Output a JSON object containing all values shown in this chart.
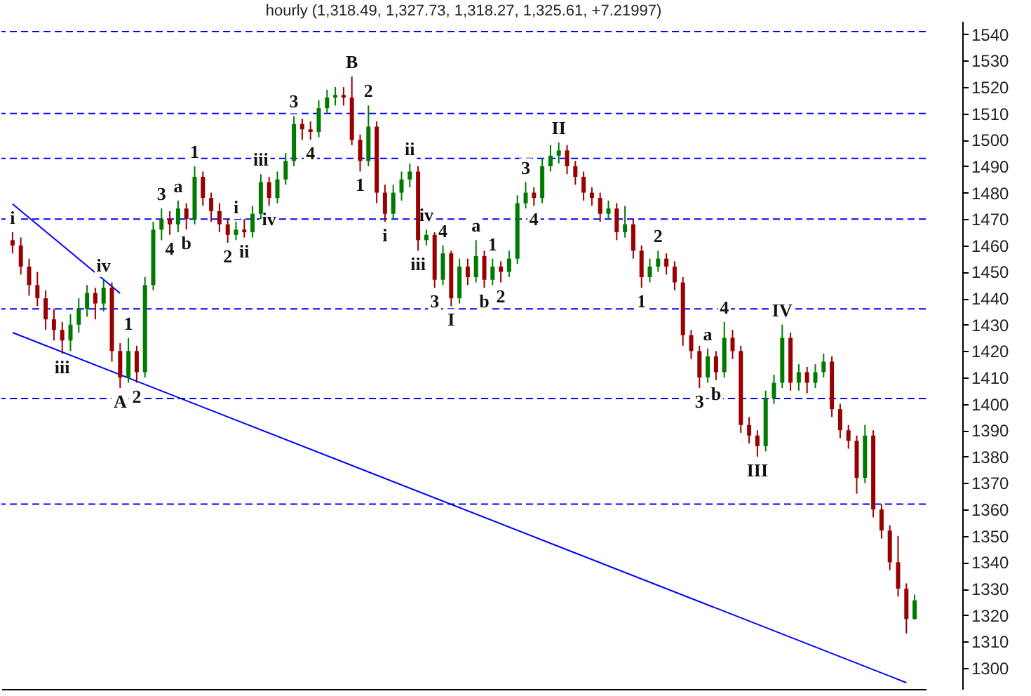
{
  "chart_data": {
    "type": "candlestick",
    "title": "hourly (1,318.49, 1,327.73, 1,318.27, 1,325.61, +7.21997)",
    "categories": [
      null,
      null,
      null,
      null,
      null,
      null,
      null,
      null,
      null,
      null,
      null,
      null,
      null,
      null,
      null,
      null,
      null,
      null,
      null,
      null,
      null,
      null,
      null,
      null,
      null,
      null,
      null,
      null,
      null,
      null,
      null,
      null,
      null,
      null,
      null,
      null,
      null,
      null,
      null,
      null,
      null,
      null,
      null,
      null,
      null,
      null,
      null,
      null,
      null,
      null,
      null,
      null,
      null,
      null,
      null,
      null,
      null,
      null,
      null,
      null,
      null,
      null,
      null,
      null,
      null,
      null,
      null,
      null,
      null,
      null,
      null,
      null,
      null,
      null,
      null,
      null,
      null,
      null,
      null,
      null,
      null,
      null,
      null,
      null,
      null,
      null,
      null,
      null,
      null,
      null,
      null,
      null,
      null,
      null,
      null,
      null,
      null,
      null,
      null,
      null,
      null,
      null,
      null,
      null,
      null,
      null,
      null,
      null,
      null,
      null
    ],
    "ohlc": [
      [
        1462,
        1465,
        1457,
        1460
      ],
      [
        1460,
        1463,
        1449,
        1452
      ],
      [
        1452,
        1455,
        1441,
        1445
      ],
      [
        1445,
        1450,
        1437,
        1440
      ],
      [
        1440,
        1443,
        1428,
        1432
      ],
      [
        1432,
        1436,
        1424,
        1428
      ],
      [
        1428,
        1431,
        1419,
        1424
      ],
      [
        1424,
        1434,
        1420,
        1430
      ],
      [
        1430,
        1440,
        1427,
        1436
      ],
      [
        1436,
        1445,
        1433,
        1442
      ],
      [
        1442,
        1444,
        1432,
        1438
      ],
      [
        1438,
        1447,
        1435,
        1444
      ],
      [
        1444,
        1446,
        1416,
        1420
      ],
      [
        1420,
        1423,
        1406,
        1410
      ],
      [
        1410,
        1425,
        1408,
        1420
      ],
      [
        1420,
        1422,
        1408,
        1412
      ],
      [
        1412,
        1448,
        1410,
        1445
      ],
      [
        1445,
        1469,
        1443,
        1466
      ],
      [
        1466,
        1474,
        1462,
        1470
      ],
      [
        1470,
        1473,
        1464,
        1468
      ],
      [
        1468,
        1477,
        1465,
        1474
      ],
      [
        1474,
        1476,
        1466,
        1470
      ],
      [
        1470,
        1490,
        1468,
        1486
      ],
      [
        1486,
        1488,
        1475,
        1478
      ],
      [
        1478,
        1480,
        1469,
        1473
      ],
      [
        1473,
        1476,
        1465,
        1468
      ],
      [
        1468,
        1470,
        1461,
        1464
      ],
      [
        1464,
        1469,
        1462,
        1466
      ],
      [
        1466,
        1470,
        1463,
        1465
      ],
      [
        1465,
        1475,
        1463,
        1472
      ],
      [
        1472,
        1487,
        1470,
        1484
      ],
      [
        1484,
        1486,
        1475,
        1478
      ],
      [
        1478,
        1488,
        1476,
        1485
      ],
      [
        1485,
        1495,
        1483,
        1492
      ],
      [
        1492,
        1509,
        1490,
        1506
      ],
      [
        1506,
        1508,
        1500,
        1504
      ],
      [
        1504,
        1507,
        1500,
        1503
      ],
      [
        1503,
        1515,
        1501,
        1512
      ],
      [
        1512,
        1519,
        1510,
        1516
      ],
      [
        1516,
        1520,
        1513,
        1517
      ],
      [
        1517,
        1520,
        1513,
        1516
      ],
      [
        1516,
        1524,
        1498,
        1500
      ],
      [
        1500,
        1502,
        1488,
        1492
      ],
      [
        1492,
        1513,
        1490,
        1505
      ],
      [
        1505,
        1507,
        1476,
        1480
      ],
      [
        1480,
        1483,
        1469,
        1472
      ],
      [
        1472,
        1483,
        1470,
        1480
      ],
      [
        1480,
        1488,
        1477,
        1485
      ],
      [
        1485,
        1491,
        1482,
        1488
      ],
      [
        1488,
        1490,
        1458,
        1462
      ],
      [
        1462,
        1466,
        1460,
        1464
      ],
      [
        1464,
        1465,
        1444,
        1447
      ],
      [
        1447,
        1460,
        1445,
        1457
      ],
      [
        1457,
        1458,
        1437,
        1440
      ],
      [
        1440,
        1455,
        1438,
        1452
      ],
      [
        1452,
        1455,
        1445,
        1448
      ],
      [
        1448,
        1462,
        1446,
        1456
      ],
      [
        1456,
        1458,
        1444,
        1447
      ],
      [
        1447,
        1455,
        1445,
        1452
      ],
      [
        1452,
        1454,
        1446,
        1450
      ],
      [
        1450,
        1458,
        1448,
        1455
      ],
      [
        1455,
        1479,
        1453,
        1476
      ],
      [
        1476,
        1484,
        1474,
        1480
      ],
      [
        1480,
        1482,
        1475,
        1478
      ],
      [
        1478,
        1493,
        1476,
        1490
      ],
      [
        1490,
        1498,
        1488,
        1494
      ],
      [
        1494,
        1499,
        1491,
        1496
      ],
      [
        1496,
        1498,
        1487,
        1490
      ],
      [
        1490,
        1492,
        1483,
        1486
      ],
      [
        1486,
        1488,
        1477,
        1480
      ],
      [
        1480,
        1482,
        1475,
        1478
      ],
      [
        1478,
        1480,
        1469,
        1472
      ],
      [
        1472,
        1477,
        1470,
        1474
      ],
      [
        1474,
        1476,
        1462,
        1465
      ],
      [
        1465,
        1475,
        1463,
        1468
      ],
      [
        1468,
        1470,
        1455,
        1458
      ],
      [
        1458,
        1460,
        1444,
        1448
      ],
      [
        1448,
        1455,
        1446,
        1452
      ],
      [
        1452,
        1458,
        1450,
        1455
      ],
      [
        1455,
        1457,
        1449,
        1452
      ],
      [
        1452,
        1454,
        1443,
        1446
      ],
      [
        1446,
        1448,
        1422,
        1426
      ],
      [
        1426,
        1428,
        1417,
        1420
      ],
      [
        1420,
        1422,
        1406,
        1410
      ],
      [
        1410,
        1421,
        1408,
        1418
      ],
      [
        1418,
        1420,
        1409,
        1412
      ],
      [
        1412,
        1431,
        1410,
        1425
      ],
      [
        1425,
        1428,
        1417,
        1420
      ],
      [
        1420,
        1422,
        1389,
        1392
      ],
      [
        1392,
        1395,
        1385,
        1388
      ],
      [
        1388,
        1390,
        1380,
        1384
      ],
      [
        1384,
        1405,
        1382,
        1402
      ],
      [
        1402,
        1411,
        1400,
        1408
      ],
      [
        1408,
        1430,
        1406,
        1425
      ],
      [
        1425,
        1427,
        1405,
        1408
      ],
      [
        1408,
        1415,
        1405,
        1412
      ],
      [
        1412,
        1414,
        1404,
        1408
      ],
      [
        1408,
        1415,
        1406,
        1412
      ],
      [
        1412,
        1419,
        1410,
        1416
      ],
      [
        1416,
        1418,
        1395,
        1398
      ],
      [
        1398,
        1400,
        1387,
        1390
      ],
      [
        1390,
        1392,
        1383,
        1386
      ],
      [
        1386,
        1388,
        1366,
        1372
      ],
      [
        1372,
        1392,
        1370,
        1388
      ],
      [
        1388,
        1390,
        1357,
        1360
      ],
      [
        1360,
        1362,
        1349,
        1352
      ],
      [
        1352,
        1354,
        1337,
        1340
      ],
      [
        1340,
        1350,
        1327,
        1330
      ],
      [
        1330,
        1332,
        1313,
        1318.49
      ],
      [
        1318.49,
        1327.73,
        1318.27,
        1325.61
      ]
    ],
    "colors": [
      "#990000",
      "#990000",
      "#990000",
      "#990000",
      "#990000",
      "#990000",
      "#990000",
      "#007a00",
      "#007a00",
      "#007a00",
      "#990000",
      "#007a00",
      "#990000",
      "#990000",
      "#007a00",
      "#990000",
      "#007a00",
      "#007a00",
      "#007a00",
      "#990000",
      "#007a00",
      "#990000",
      "#007a00",
      "#990000",
      "#990000",
      "#990000",
      "#990000",
      "#007a00",
      "#990000",
      "#007a00",
      "#007a00",
      "#990000",
      "#007a00",
      "#007a00",
      "#007a00",
      "#990000",
      "#990000",
      "#007a00",
      "#007a00",
      "#007a00",
      "#990000",
      "#990000",
      "#990000",
      "#007a00",
      "#990000",
      "#990000",
      "#007a00",
      "#007a00",
      "#007a00",
      "#990000",
      "#007a00",
      "#990000",
      "#007a00",
      "#990000",
      "#007a00",
      "#990000",
      "#007a00",
      "#990000",
      "#007a00",
      "#990000",
      "#007a00",
      "#007a00",
      "#007a00",
      "#990000",
      "#007a00",
      "#007a00",
      "#007a00",
      "#990000",
      "#990000",
      "#990000",
      "#990000",
      "#990000",
      "#007a00",
      "#990000",
      "#007a00",
      "#990000",
      "#990000",
      "#007a00",
      "#007a00",
      "#990000",
      "#990000",
      "#990000",
      "#990000",
      "#990000",
      "#007a00",
      "#990000",
      "#007a00",
      "#990000",
      "#990000",
      "#990000",
      "#990000",
      "#007a00",
      "#007a00",
      "#007a00",
      "#990000",
      "#007a00",
      "#990000",
      "#007a00",
      "#007a00",
      "#990000",
      "#990000",
      "#990000",
      "#990000",
      "#007a00",
      "#990000",
      "#990000",
      "#990000",
      "#990000",
      "#990000",
      "#007a00"
    ],
    "value_labels": [
      "i",
      null,
      null,
      null,
      null,
      null,
      "iii",
      null,
      null,
      null,
      null,
      "iv",
      null,
      "A",
      "1",
      "2",
      null,
      null,
      "3",
      "4",
      "a",
      "b",
      "1",
      null,
      null,
      null,
      "2",
      "i",
      "ii",
      null,
      "iii",
      "iv",
      null,
      null,
      "3",
      null,
      "4",
      null,
      null,
      null,
      null,
      "B",
      "1",
      "2",
      null,
      "i",
      null,
      null,
      "ii",
      "iii",
      "iv",
      "3",
      "4",
      "I",
      null,
      null,
      "a",
      "b",
      "1",
      "2",
      null,
      null,
      "3",
      "4",
      null,
      null,
      "II",
      null,
      null,
      null,
      null,
      null,
      null,
      null,
      null,
      null,
      "1",
      null,
      "2",
      null,
      null,
      null,
      null,
      "3",
      "a",
      "b",
      "4",
      null,
      null,
      null,
      "III",
      null,
      null,
      "IV",
      null,
      null,
      null,
      null,
      null,
      null,
      null,
      null,
      null,
      null,
      null,
      null,
      null,
      null,
      null,
      null
    ],
    "series": [
      {
        "type": "line",
        "color": "#0000ff",
        "values": [
          1475.7,
          null,
          null,
          null,
          null,
          null,
          null,
          null,
          null,
          null,
          null,
          null,
          null,
          1441.9,
          null,
          null,
          null,
          null,
          null,
          null,
          null,
          null,
          null,
          null,
          null,
          null,
          null,
          null,
          null,
          null,
          null,
          null,
          null,
          null,
          null,
          null,
          null,
          null,
          null,
          null,
          null,
          null,
          null,
          null,
          null,
          null,
          null,
          null,
          null,
          null,
          null,
          null,
          null,
          null,
          null,
          null,
          null,
          null,
          null,
          null,
          null,
          null,
          null,
          null,
          null,
          null,
          null,
          null,
          null,
          null,
          null,
          null,
          null,
          null,
          null,
          null,
          null,
          null,
          null,
          null,
          null,
          null,
          null,
          null,
          null,
          null,
          null,
          null,
          null,
          null,
          null,
          null,
          null,
          null,
          null,
          null,
          null,
          null,
          null,
          null,
          null,
          null,
          null,
          null,
          null,
          null,
          null,
          null,
          null,
          null
        ]
      },
      {
        "type": "line",
        "color": "#0000ff",
        "values": [
          1427,
          null,
          null,
          null,
          null,
          null,
          null,
          null,
          null,
          null,
          null,
          null,
          null,
          null,
          null,
          null,
          null,
          null,
          null,
          null,
          null,
          null,
          null,
          null,
          null,
          null,
          null,
          null,
          null,
          null,
          null,
          null,
          null,
          null,
          null,
          null,
          null,
          null,
          null,
          null,
          null,
          null,
          null,
          null,
          null,
          null,
          null,
          null,
          null,
          null,
          null,
          null,
          null,
          null,
          null,
          null,
          null,
          null,
          null,
          null,
          null,
          null,
          null,
          null,
          null,
          null,
          null,
          null,
          null,
          null,
          null,
          null,
          null,
          null,
          null,
          null,
          null,
          null,
          null,
          null,
          null,
          null,
          null,
          null,
          null,
          null,
          null,
          null,
          null,
          null,
          null,
          null,
          null,
          null,
          null,
          null,
          null,
          null,
          null,
          null,
          null,
          null,
          null,
          null,
          null,
          null,
          null,
          null,
          1294.4,
          null
        ]
      }
    ],
    "ylim": [
      1292,
      1545
    ],
    "yticks": [
      1300,
      1310,
      1320,
      1330,
      1340,
      1350,
      1360,
      1370,
      1380,
      1390,
      1400,
      1410,
      1420,
      1430,
      1440,
      1450,
      1460,
      1470,
      1480,
      1490,
      1500,
      1510,
      1520,
      1530,
      1540
    ],
    "tick_labels": "y",
    "grid": false,
    "line_style": "solid",
    "ref_lines": [
      {
        "axis": "y",
        "value": 1541,
        "color": "#0000ff",
        "line_style": "dashed"
      },
      {
        "axis": "y",
        "value": 1510,
        "color": "#0000ff",
        "line_style": "dashed"
      },
      {
        "axis": "y",
        "value": 1493,
        "color": "#0000ff",
        "line_style": "dashed"
      },
      {
        "axis": "y",
        "value": 1470,
        "color": "#0000ff",
        "line_style": "dashed"
      },
      {
        "axis": "y",
        "value": 1436,
        "color": "#0000ff",
        "line_style": "dashed"
      },
      {
        "axis": "y",
        "value": 1402,
        "color": "#0000ff",
        "line_style": "dashed"
      },
      {
        "axis": "y",
        "value": 1362,
        "color": "#0000ff",
        "line_style": "dashed"
      }
    ]
  }
}
